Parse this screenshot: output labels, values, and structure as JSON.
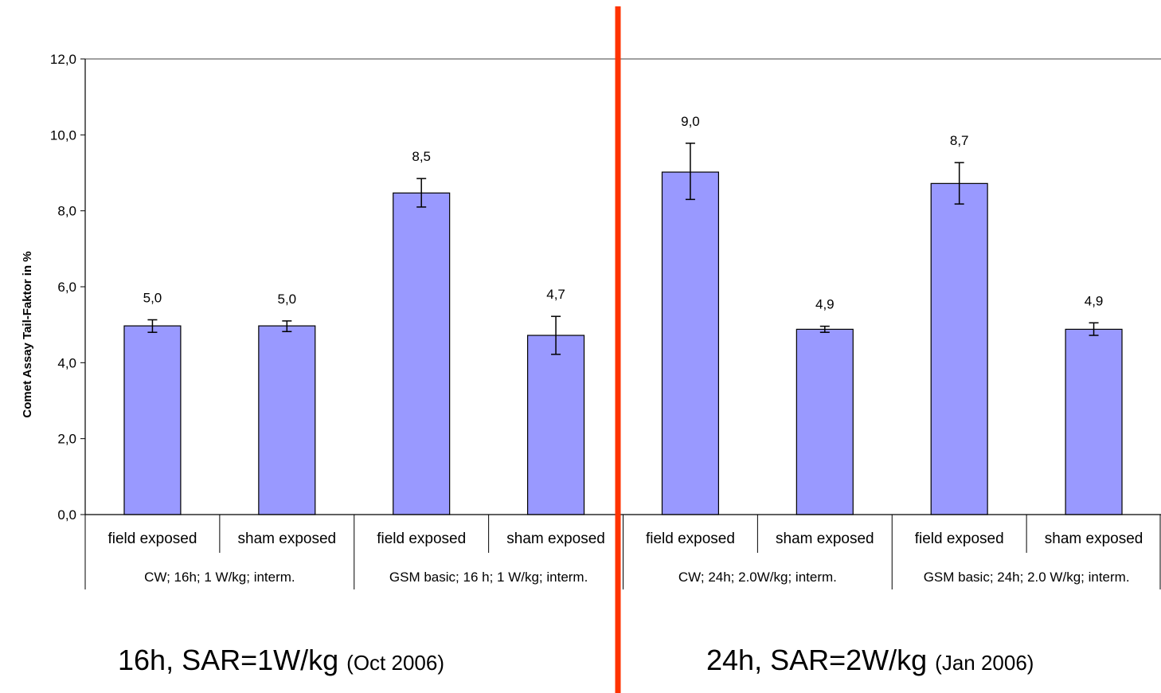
{
  "chart_data": {
    "type": "bar",
    "ylabel": "Comet Assay Tail-Faktor in %",
    "ylim": [
      0,
      12
    ],
    "yticks": [
      "0,0",
      "2,0",
      "4,0",
      "6,0",
      "8,0",
      "10,0",
      "12,0"
    ],
    "grid": false,
    "legend": "none",
    "bar_color": "#9999ff",
    "divider_color": "#ff3300",
    "categories": [
      "field exposed",
      "sham exposed",
      "field exposed",
      "sham exposed",
      "field exposed",
      "sham exposed",
      "field exposed",
      "sham exposed"
    ],
    "groups": [
      "CW; 16h; 1 W/kg; interm.",
      "GSM basic; 16 h; 1 W/kg; interm.",
      "CW; 24h; 2.0W/kg; interm.",
      "GSM basic; 24h; 2.0 W/kg; interm."
    ],
    "values": [
      4.97,
      4.97,
      8.47,
      4.72,
      9.02,
      4.88,
      8.72,
      4.88
    ],
    "value_labels": [
      "5,0",
      "5,0",
      "8,5",
      "4,7",
      "9,0",
      "4,9",
      "8,7",
      "4,9"
    ],
    "error_low": [
      4.8,
      4.82,
      8.1,
      4.22,
      8.3,
      4.8,
      8.18,
      4.72
    ],
    "error_high": [
      5.13,
      5.1,
      8.85,
      5.22,
      9.78,
      4.96,
      9.27,
      5.05
    ]
  },
  "captions": {
    "left_main": "16h, SAR=1W/kg",
    "left_small": "(Oct 2006)",
    "right_main": "24h, SAR=2W/kg",
    "right_small": "(Jan 2006)"
  }
}
